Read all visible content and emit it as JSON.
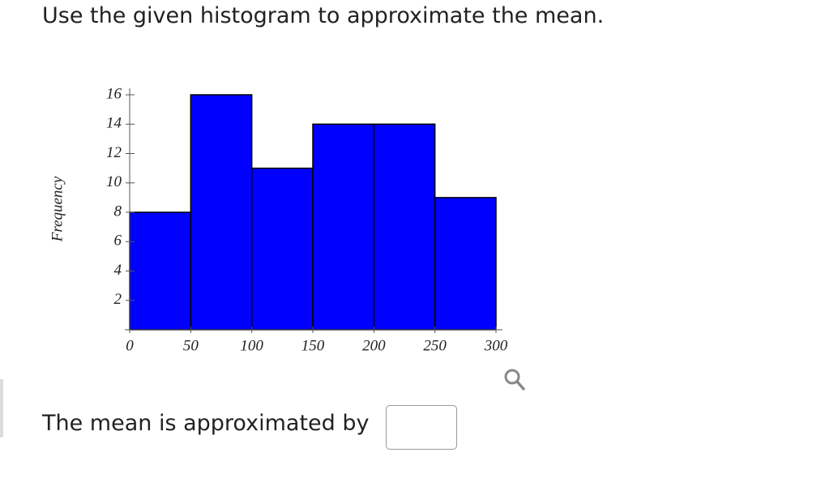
{
  "question": "Use the given histogram to approximate the mean.",
  "chart_data": {
    "type": "histogram",
    "ylabel": "Frequency",
    "bins": [
      0,
      50,
      100,
      150,
      200,
      250,
      300
    ],
    "values": [
      8,
      16,
      11,
      14,
      14,
      9
    ],
    "color": "#0000ff",
    "xlim": [
      0,
      300
    ],
    "xticks": [
      0,
      50,
      100,
      150,
      200,
      250,
      300
    ],
    "ylim": [
      0,
      16
    ],
    "yticks": [
      2,
      4,
      6,
      8,
      10,
      12,
      14,
      16
    ]
  },
  "answer_prompt": "The mean is approximated by"
}
